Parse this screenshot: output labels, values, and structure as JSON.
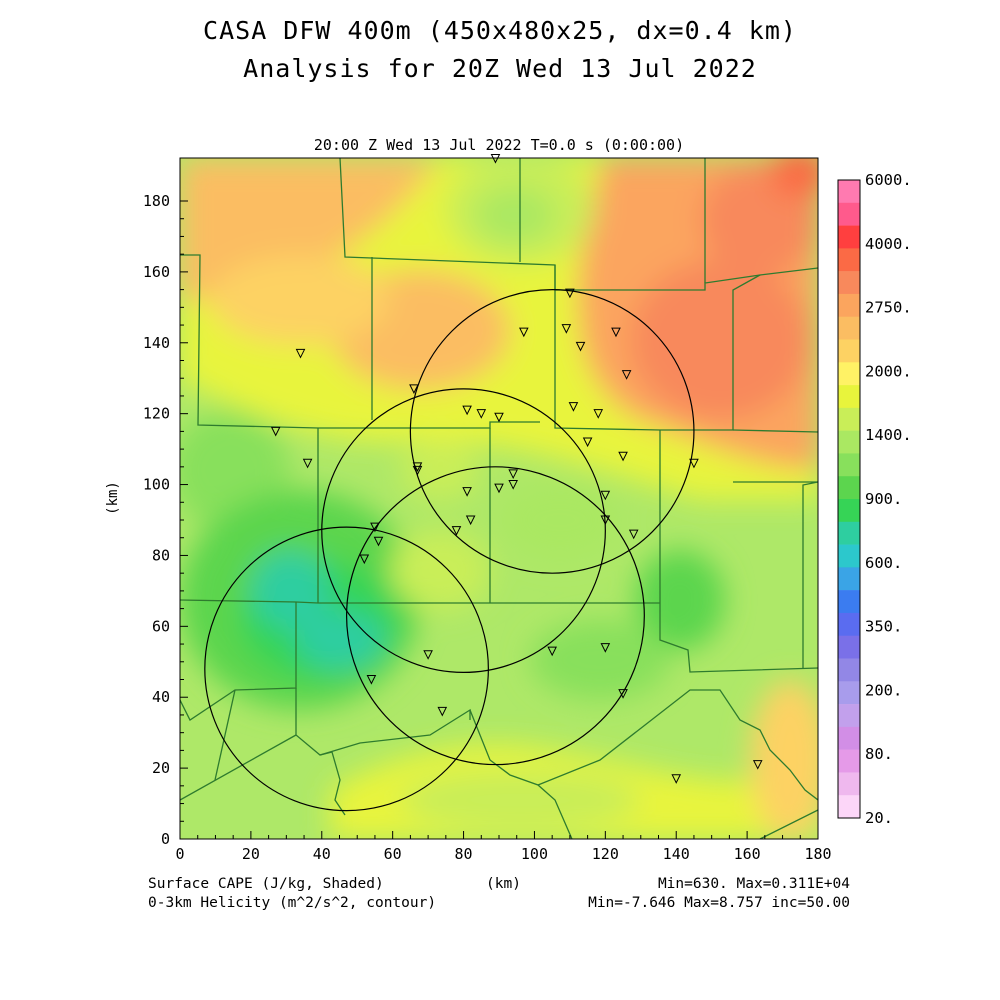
{
  "title_line1": "CASA DFW 400m (450x480x25, dx=0.4 km)",
  "title_line2": "Analysis for 20Z Wed 13 Jul 2022",
  "subtitle": "20:00 Z Wed 13 Jul 2022    T=0.0 s (0:00:00)",
  "x_unit": "(km)",
  "y_unit": "(km)",
  "x_ticks": [
    "0",
    "20",
    "40",
    "60",
    "80",
    "100",
    "120",
    "140",
    "160",
    "180"
  ],
  "y_ticks": [
    "0",
    "20",
    "40",
    "60",
    "80",
    "100",
    "120",
    "140",
    "160",
    "180"
  ],
  "colorbar_labels": [
    "6000.",
    "4000.",
    "2750.",
    "2000.",
    "1400.",
    "900.",
    "600.",
    "350.",
    "200.",
    "80.",
    "20."
  ],
  "colorbar_colors": [
    "#ff7ab0",
    "#ff5a8c",
    "#ff3f3f",
    "#fb6a45",
    "#f8895c",
    "#fba55e",
    "#fbbd62",
    "#fdd263",
    "#fff265",
    "#e8f43c",
    "#c9ee58",
    "#aae862",
    "#88e05c",
    "#5cd54e",
    "#36d456",
    "#2ecea0",
    "#2cc8cc",
    "#3aa4e6",
    "#3b7cf0",
    "#5a6cf0",
    "#7a70e8",
    "#9287e6",
    "#a89cec",
    "#c2a0ec",
    "#d28ee6",
    "#e59ae8",
    "#efb8ee",
    "#fcd6f8"
  ],
  "footer": {
    "left1": "Surface CAPE (J/kg, Shaded)",
    "left2": "0-3km Helicity (m^2/s^2, contour)",
    "center": "(km)",
    "right1": "Min=630. Max=0.311E+04",
    "right2": "Min=-7.646 Max=8.757 inc=50.00"
  },
  "colors": {
    "map_base": "#aee868",
    "boundary": "#2e7b2e"
  },
  "radar_circles": [
    {
      "cx": 105,
      "cy": 115,
      "r": 40
    },
    {
      "cx": 80,
      "cy": 87,
      "r": 40
    },
    {
      "cx": 89,
      "cy": 63,
      "r": 42
    },
    {
      "cx": 47,
      "cy": 48,
      "r": 40
    }
  ],
  "stations": [
    [
      89,
      192
    ],
    [
      110,
      154
    ],
    [
      97,
      143
    ],
    [
      109,
      144
    ],
    [
      113,
      139
    ],
    [
      123,
      143
    ],
    [
      126,
      131
    ],
    [
      34,
      137
    ],
    [
      66,
      127
    ],
    [
      81,
      121
    ],
    [
      85,
      120
    ],
    [
      90,
      119
    ],
    [
      111,
      122
    ],
    [
      118,
      120
    ],
    [
      27,
      115
    ],
    [
      36,
      106
    ],
    [
      67,
      105
    ],
    [
      67,
      104
    ],
    [
      115,
      112
    ],
    [
      125,
      108
    ],
    [
      145,
      106
    ],
    [
      94,
      103
    ],
    [
      94,
      100
    ],
    [
      90,
      99
    ],
    [
      81,
      98
    ],
    [
      120,
      97
    ],
    [
      120,
      90
    ],
    [
      82,
      90
    ],
    [
      78,
      87
    ],
    [
      128,
      86
    ],
    [
      55,
      88
    ],
    [
      56,
      84
    ],
    [
      52,
      79
    ],
    [
      70,
      52
    ],
    [
      105,
      53
    ],
    [
      120,
      54
    ],
    [
      54,
      45
    ],
    [
      125,
      41
    ],
    [
      74,
      36
    ],
    [
      140,
      17
    ],
    [
      163,
      21
    ]
  ]
}
